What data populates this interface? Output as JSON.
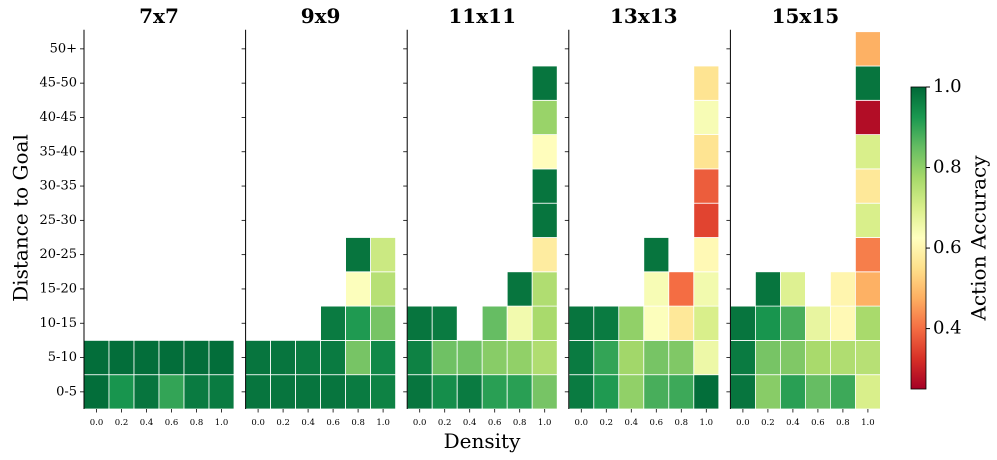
{
  "chart_data": {
    "type": "heatmap",
    "xlabel": "Density",
    "ylabel": "Distance to Goal",
    "x_categories": [
      "0.0",
      "0.2",
      "0.4",
      "0.6",
      "0.8",
      "1.0"
    ],
    "y_categories": [
      "0-5",
      "5-10",
      "10-15",
      "15-20",
      "20-25",
      "25-30",
      "30-35",
      "35-40",
      "40-45",
      "45-50",
      "50+"
    ],
    "colorbar": {
      "label": "Action Accuracy",
      "min": 0.25,
      "max": 1.0,
      "ticks": [
        "0.4",
        "0.6",
        "0.8",
        "1.0"
      ],
      "colormap": "RdYlGn"
    },
    "panels": [
      {
        "title": "7x7",
        "values": [
          [
            0.99,
            0.93,
            0.98,
            0.9,
            0.97,
            0.97
          ],
          [
            0.99,
            0.99,
            0.99,
            0.99,
            0.99,
            0.99
          ],
          [
            null,
            null,
            null,
            null,
            null,
            null
          ],
          [
            null,
            null,
            null,
            null,
            null,
            null
          ],
          [
            null,
            null,
            null,
            null,
            null,
            null
          ],
          [
            null,
            null,
            null,
            null,
            null,
            null
          ],
          [
            null,
            null,
            null,
            null,
            null,
            null
          ],
          [
            null,
            null,
            null,
            null,
            null,
            null
          ],
          [
            null,
            null,
            null,
            null,
            null,
            null
          ],
          [
            null,
            null,
            null,
            null,
            null,
            null
          ],
          [
            null,
            null,
            null,
            null,
            null,
            null
          ]
        ]
      },
      {
        "title": "9x9",
        "values": [
          [
            0.98,
            0.98,
            0.98,
            0.98,
            0.97,
            0.96
          ],
          [
            0.98,
            0.98,
            0.97,
            0.97,
            0.83,
            0.95
          ],
          [
            null,
            null,
            null,
            0.97,
            0.92,
            0.83
          ],
          [
            null,
            null,
            null,
            null,
            0.63,
            0.75
          ],
          [
            null,
            null,
            null,
            null,
            0.98,
            0.72
          ],
          [
            null,
            null,
            null,
            null,
            null,
            null
          ],
          [
            null,
            null,
            null,
            null,
            null,
            null
          ],
          [
            null,
            null,
            null,
            null,
            null,
            null
          ],
          [
            null,
            null,
            null,
            null,
            null,
            null
          ],
          [
            null,
            null,
            null,
            null,
            null,
            null
          ],
          [
            null,
            null,
            null,
            null,
            null,
            null
          ]
        ]
      },
      {
        "title": "11x11",
        "values": [
          [
            0.98,
            0.94,
            0.97,
            0.91,
            0.91,
            0.83
          ],
          [
            0.96,
            0.84,
            0.84,
            0.81,
            0.8,
            0.76
          ],
          [
            0.98,
            0.97,
            null,
            0.85,
            0.65,
            0.77
          ],
          [
            null,
            null,
            null,
            null,
            0.98,
            0.76
          ],
          [
            null,
            null,
            null,
            null,
            null,
            0.58
          ],
          [
            null,
            null,
            null,
            null,
            null,
            0.98
          ],
          [
            null,
            null,
            null,
            null,
            null,
            0.98
          ],
          [
            null,
            null,
            null,
            null,
            null,
            0.62
          ],
          [
            null,
            null,
            null,
            null,
            null,
            0.79
          ],
          [
            null,
            null,
            null,
            null,
            null,
            0.98
          ],
          [
            null,
            null,
            null,
            null,
            null,
            null
          ]
        ]
      },
      {
        "title": "13x13",
        "values": [
          [
            0.97,
            0.92,
            0.8,
            0.88,
            0.89,
            0.99
          ],
          [
            0.97,
            0.9,
            0.78,
            0.83,
            0.82,
            0.66
          ],
          [
            0.98,
            0.97,
            0.8,
            0.63,
            0.57,
            0.7
          ],
          [
            null,
            null,
            null,
            0.64,
            0.4,
            0.65
          ],
          [
            null,
            null,
            null,
            0.98,
            null,
            0.61
          ],
          [
            null,
            null,
            null,
            null,
            null,
            0.35
          ],
          [
            null,
            null,
            null,
            null,
            null,
            0.38
          ],
          [
            null,
            null,
            null,
            null,
            null,
            0.56
          ],
          [
            null,
            null,
            null,
            null,
            null,
            0.64
          ],
          [
            null,
            null,
            null,
            null,
            null,
            0.56
          ],
          [
            null,
            null,
            null,
            null,
            null,
            null
          ]
        ]
      },
      {
        "title": "15x15",
        "values": [
          [
            0.98,
            0.81,
            0.91,
            0.85,
            0.89,
            0.7
          ],
          [
            0.97,
            0.83,
            0.82,
            0.77,
            0.76,
            0.75
          ],
          [
            0.98,
            0.93,
            0.88,
            0.67,
            0.61,
            0.77
          ],
          [
            null,
            0.98,
            0.69,
            null,
            0.6,
            0.48
          ],
          [
            null,
            null,
            null,
            null,
            null,
            0.42
          ],
          [
            null,
            null,
            null,
            null,
            null,
            0.7
          ],
          [
            null,
            null,
            null,
            null,
            null,
            0.57
          ],
          [
            null,
            null,
            null,
            null,
            null,
            0.7
          ],
          [
            null,
            null,
            null,
            null,
            null,
            0.27
          ],
          [
            null,
            null,
            null,
            null,
            null,
            0.98
          ],
          [
            null,
            null,
            null,
            null,
            null,
            0.48
          ]
        ]
      }
    ]
  }
}
